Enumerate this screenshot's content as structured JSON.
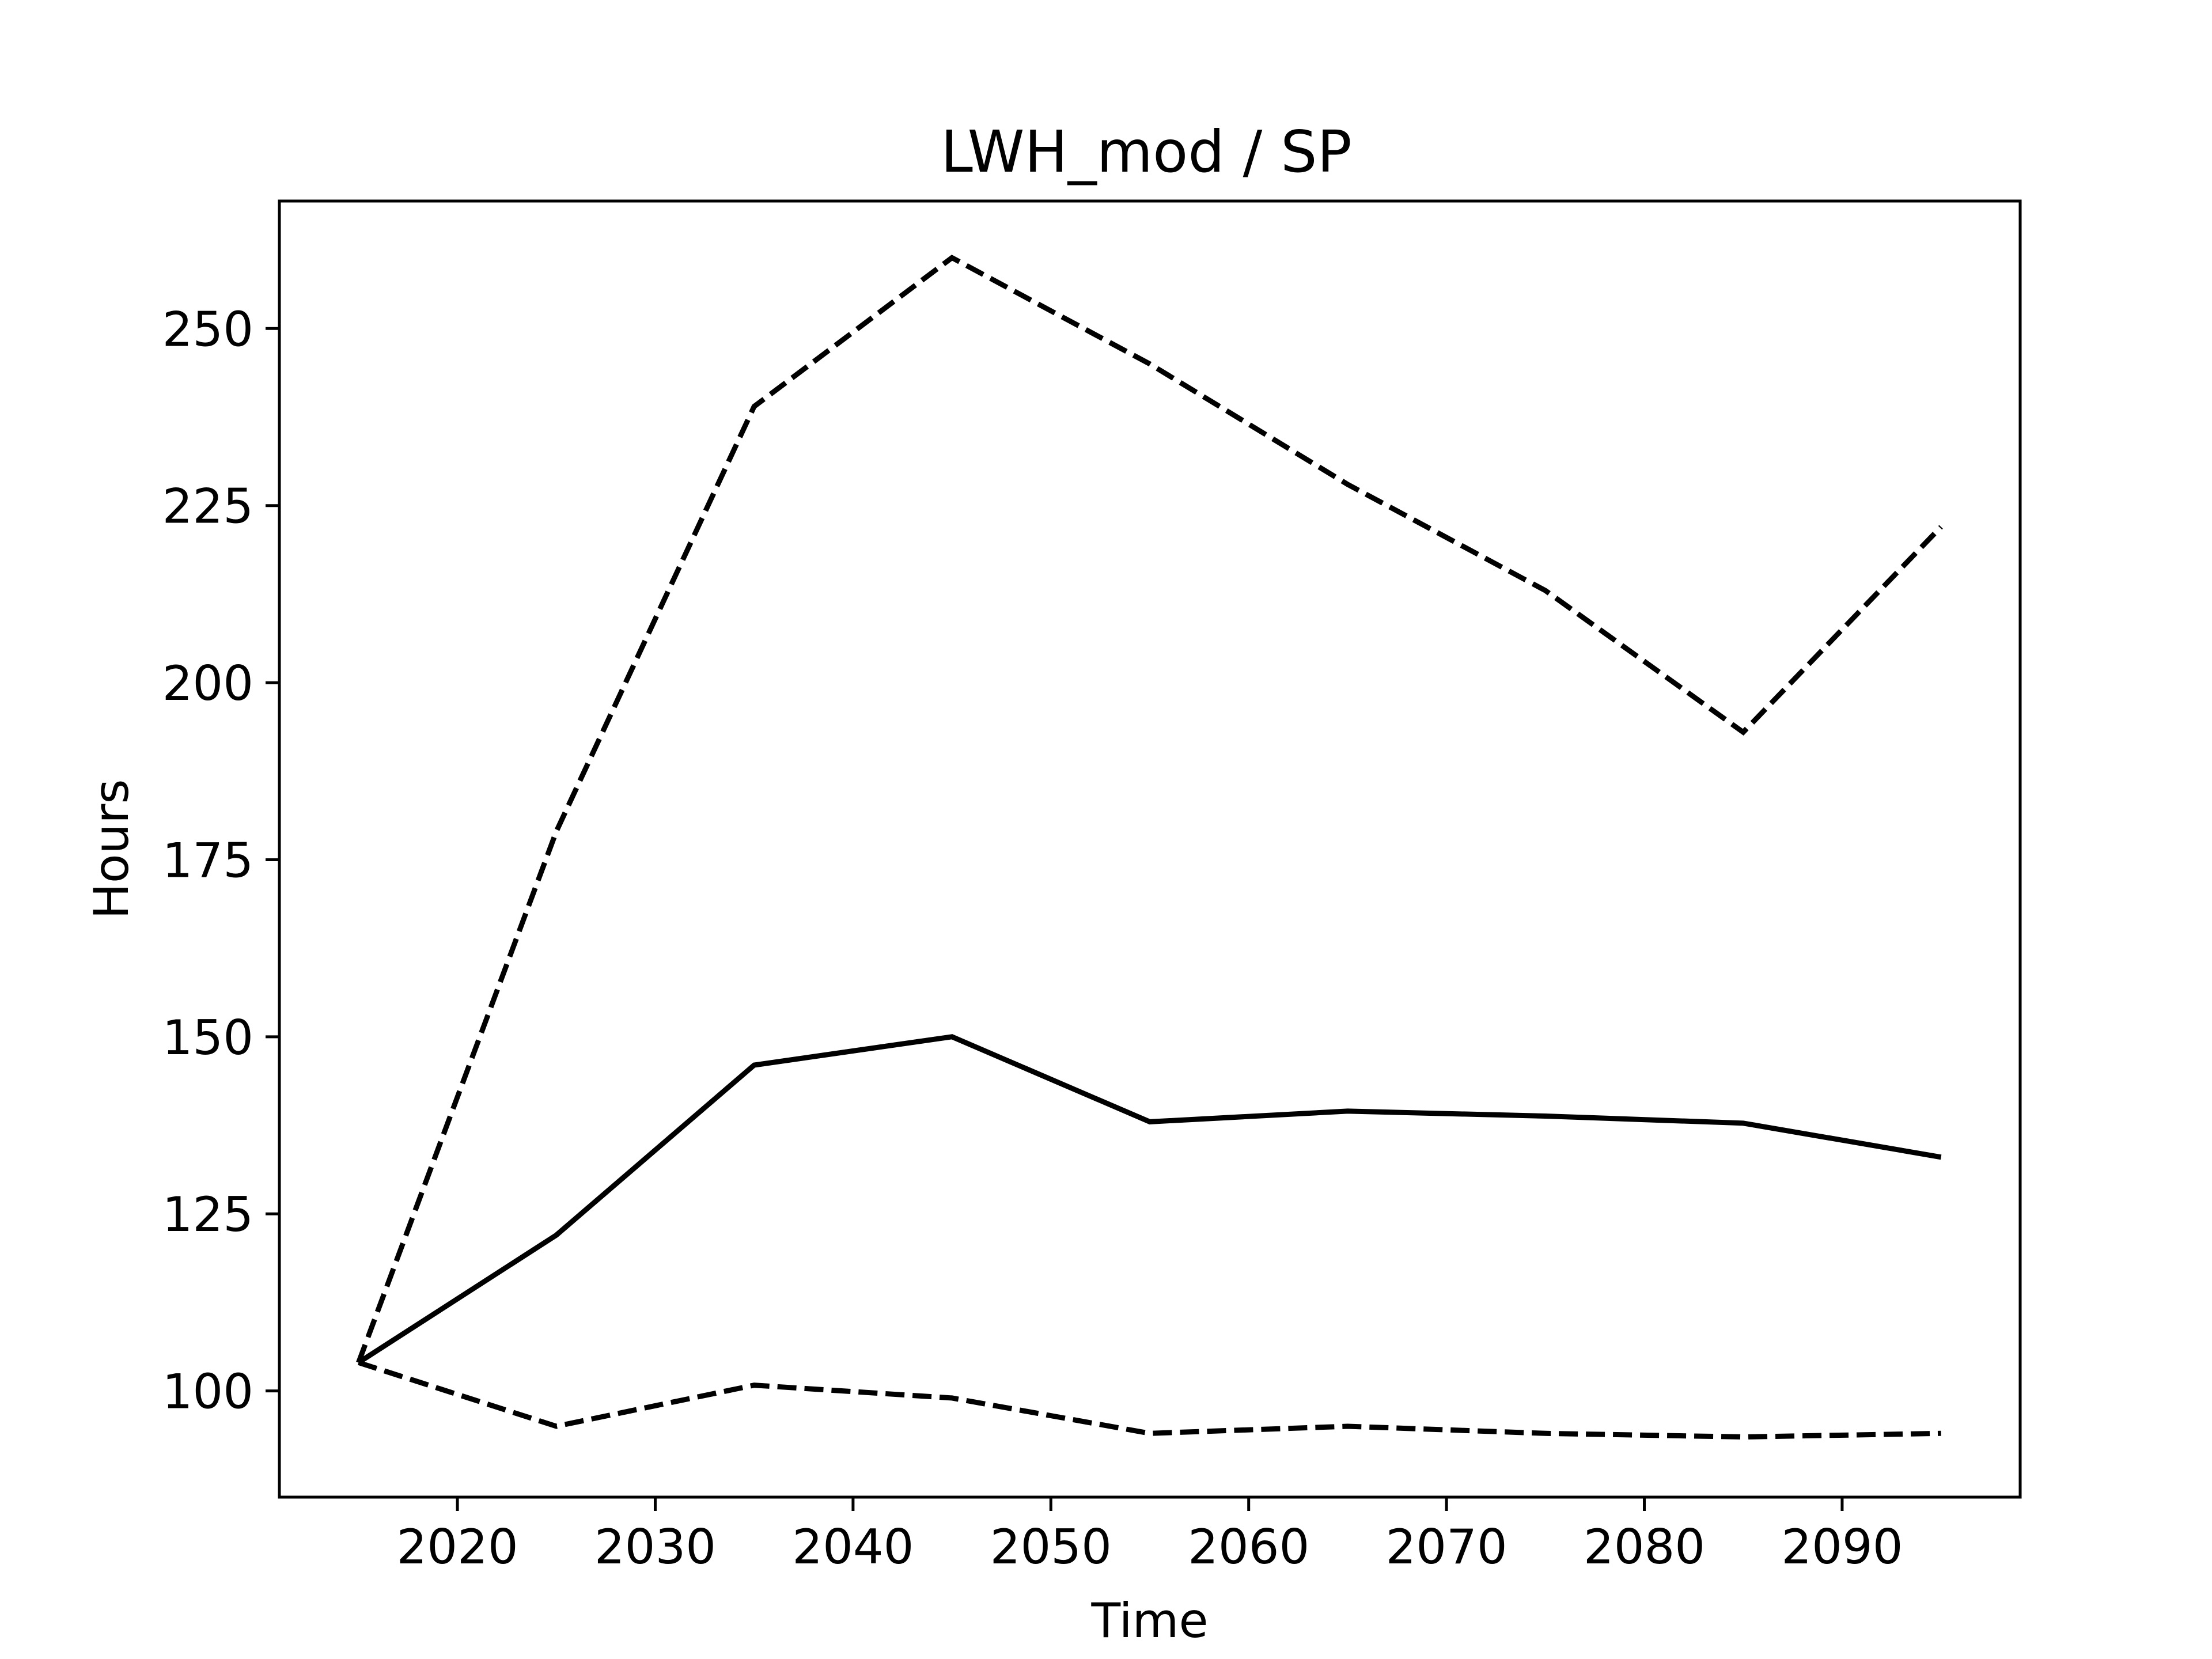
{
  "chart_data": {
    "type": "line",
    "title": "LWH_mod / SP",
    "xlabel": "Time",
    "ylabel": "Hours",
    "x": [
      2015,
      2025,
      2035,
      2045,
      2055,
      2065,
      2075,
      2085,
      2095
    ],
    "xlim": [
      2011,
      2099
    ],
    "ylim": [
      85,
      268
    ],
    "xticks": [
      2020,
      2030,
      2040,
      2050,
      2060,
      2070,
      2080,
      2090
    ],
    "yticks": [
      100,
      125,
      150,
      175,
      200,
      225,
      250
    ],
    "grid": false,
    "series": [
      {
        "style": "dashed",
        "color": "#000000",
        "values": [
          104,
          179,
          239,
          260,
          245,
          228,
          213,
          193,
          222
        ]
      },
      {
        "style": "solid",
        "color": "#000000",
        "values": [
          104,
          122,
          146,
          150,
          138,
          139.5,
          138.8,
          137.8,
          133
        ]
      },
      {
        "style": "dashed",
        "color": "#000000",
        "values": [
          104,
          95,
          100.8,
          99,
          94,
          95,
          94,
          93.5,
          94
        ]
      }
    ]
  }
}
